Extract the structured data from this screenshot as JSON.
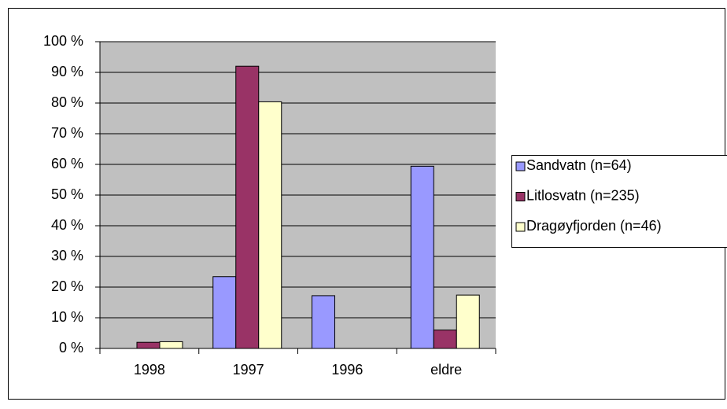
{
  "chart_data": {
    "type": "bar",
    "categories": [
      "1998",
      "1997",
      "1996",
      "eldre"
    ],
    "series": [
      {
        "name": "Sandvatn (n=64)",
        "color": "#9999ff",
        "values": [
          0,
          23.4,
          17.2,
          59.4
        ]
      },
      {
        "name": "Litlosvatn (n=235)",
        "color": "#993366",
        "values": [
          2,
          92,
          0,
          6
        ]
      },
      {
        "name": "Dragøyfjorden (n=46)",
        "color": "#ffffcc",
        "values": [
          2.2,
          80.4,
          0,
          17.4
        ]
      }
    ],
    "ylim": [
      0,
      100
    ],
    "yticks": [
      {
        "value": 0,
        "label": "0 %"
      },
      {
        "value": 10,
        "label": "10 %"
      },
      {
        "value": 20,
        "label": "20 %"
      },
      {
        "value": 30,
        "label": "30 %"
      },
      {
        "value": 40,
        "label": "40 %"
      },
      {
        "value": 50,
        "label": "50 %"
      },
      {
        "value": 60,
        "label": "60 %"
      },
      {
        "value": 70,
        "label": "70 %"
      },
      {
        "value": 80,
        "label": "80 %"
      },
      {
        "value": 90,
        "label": "90 %"
      },
      {
        "value": 100,
        "label": "100 %"
      }
    ],
    "grid": true,
    "legend": "right",
    "plot_background": "#c0c0c0"
  }
}
